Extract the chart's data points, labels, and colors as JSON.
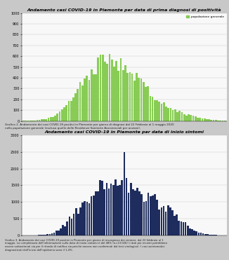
{
  "title1": "Andamento casi COVID-19 in Piemonte per data di prima diagnosi di positività",
  "title2": "Andamento casi COVID-19 in Piemonte per data di inizio sintomi",
  "legend1": "popolazione generale",
  "caption1": "Grafico 2. Andamento dei casi COVID-19 positivi in Piemonte per giorno di diagnosi dal 22 Febbraio al 1 maggio 2020\nnella popolazione generale (escluso quelle delle Residenze Sanitarie Assistenziali per anziani).",
  "caption2": "Grafico 3. Andamento dei casi COVID-19 positivi in Piemonte per giorno di insorgenza dei sintomi, dal 22 febbraio al 1\nmaggio. La completezza dell'informazione sulla data di inizio sintomi è del 48% (n=13.026) (i dati più recenti potrebbero\nessere sottostimati sia per il ritardo di notifica sia perché ancora non confermati dal test virologico). I casi asintomatici\ndiagnosticati dall'inizio dell'epidemia sono il 1.4%.",
  "bar_color1": "#88cc55",
  "bar_color2": "#1e2d5e",
  "bg_color": "#c8c8c8",
  "panel_bg": "#f8f8f8",
  "ylim1": [
    0,
    1000
  ],
  "ylim2": [
    0,
    3000
  ],
  "yticks1": [
    0,
    100,
    200,
    300,
    400,
    500,
    600,
    700,
    800,
    900,
    1000
  ],
  "yticks2": [
    0,
    500,
    1000,
    1500,
    2000,
    2500,
    3000
  ],
  "values1": [
    2,
    1,
    3,
    2,
    4,
    6,
    10,
    8,
    14,
    18,
    22,
    28,
    35,
    42,
    55,
    72,
    90,
    105,
    130,
    155,
    180,
    210,
    235,
    270,
    300,
    330,
    360,
    390,
    410,
    440,
    460,
    480,
    500,
    520,
    540,
    560,
    580,
    600,
    590,
    580,
    570,
    555,
    540,
    520,
    505,
    490,
    470,
    450,
    430,
    410,
    390,
    370,
    345,
    325,
    305,
    285,
    265,
    245,
    225,
    205,
    185,
    170,
    155,
    140,
    130,
    120,
    110,
    100,
    90,
    80,
    75,
    68,
    60,
    55,
    50,
    45,
    40,
    35,
    30,
    25,
    20,
    18,
    15,
    12,
    10,
    8,
    6,
    5,
    4,
    3
  ],
  "values2": [
    1,
    1,
    2,
    2,
    3,
    4,
    5,
    8,
    10,
    15,
    20,
    30,
    45,
    60,
    80,
    120,
    160,
    200,
    260,
    320,
    400,
    480,
    560,
    640,
    700,
    760,
    820,
    900,
    960,
    1020,
    1100,
    1180,
    1250,
    1320,
    1400,
    1450,
    1480,
    1500,
    1520,
    1550,
    1580,
    1600,
    1580,
    1560,
    1540,
    1520,
    1500,
    1480,
    1460,
    1440,
    1420,
    1380,
    1350,
    1310,
    1280,
    1250,
    1220,
    1180,
    1150,
    1100,
    1050,
    1000,
    950,
    900,
    850,
    800,
    750,
    700,
    650,
    600,
    550,
    500,
    450,
    400,
    350,
    300,
    250,
    200,
    160,
    130,
    100,
    80,
    60,
    40,
    30,
    20,
    15,
    10,
    8,
    5,
    4,
    3,
    2
  ],
  "values2_spike": [
    46,
    2500
  ],
  "title_fontsize": 4.5,
  "tick_fontsize": 3.5,
  "caption_fontsize1": 3.0,
  "caption_fontsize2": 2.7
}
